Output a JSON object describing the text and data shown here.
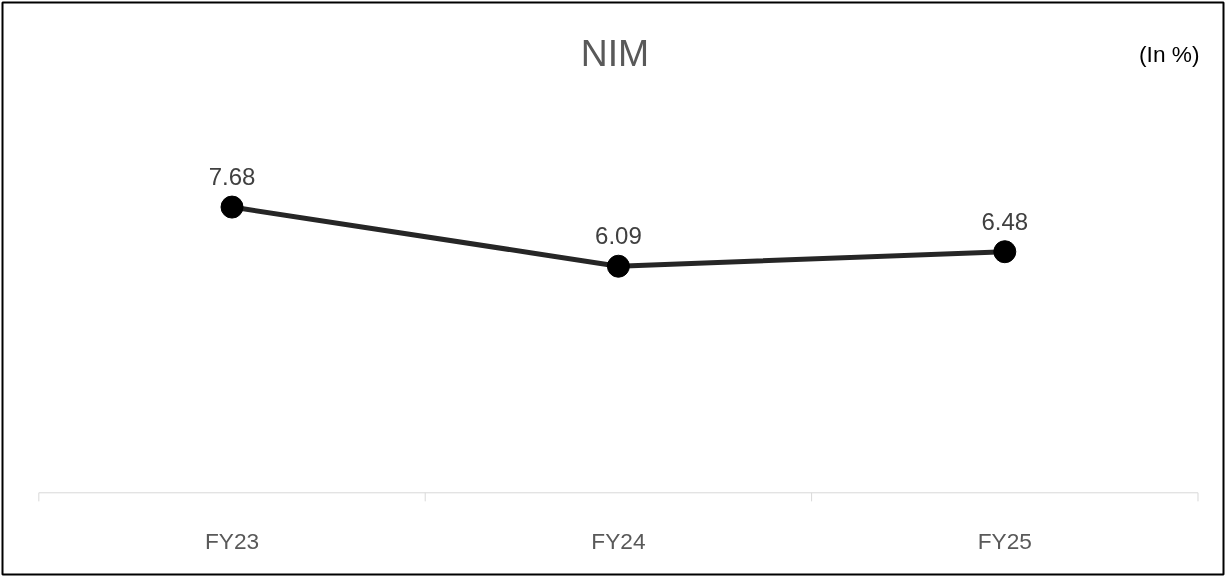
{
  "chart_data": {
    "type": "line",
    "title": "NIM",
    "annotations": [
      "(In %)"
    ],
    "categories": [
      "FY23",
      "FY24",
      "FY25"
    ],
    "series": [
      {
        "color": "#262626",
        "values": [
          7.68,
          6.09,
          6.48
        ]
      }
    ],
    "data_labels": true,
    "marker": "circle",
    "line_style": "solid",
    "grid": false
  }
}
